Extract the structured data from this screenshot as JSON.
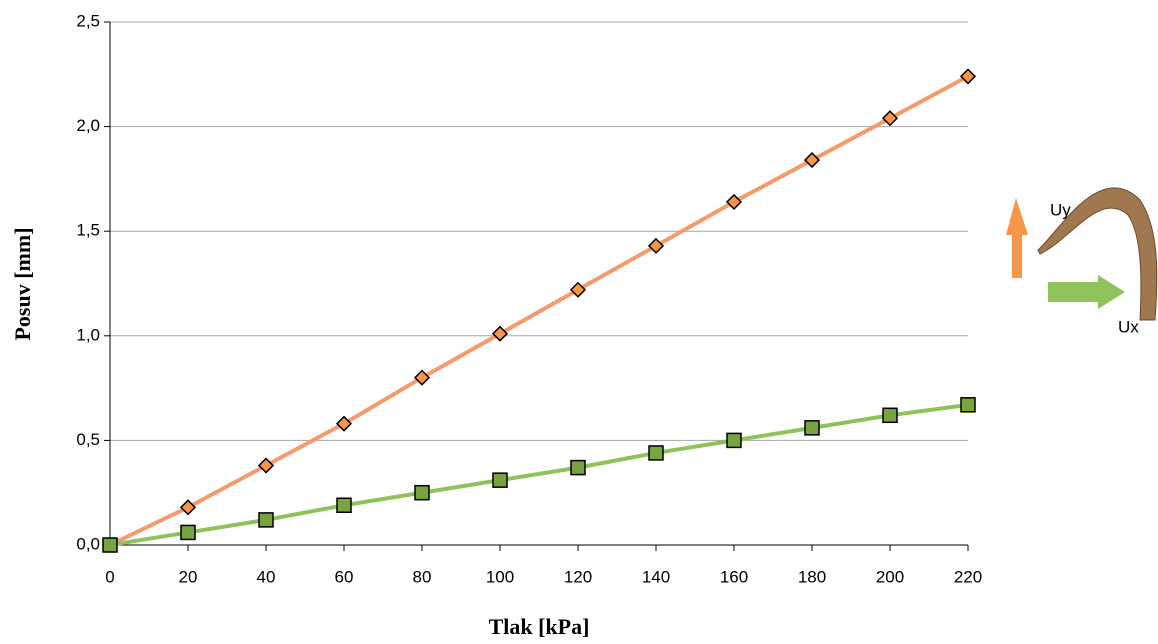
{
  "chart_data": {
    "type": "line",
    "x_label": "Tlak [kPa]",
    "y_label": "Posuv [mm]",
    "x": [
      0,
      20,
      40,
      60,
      80,
      100,
      120,
      140,
      160,
      180,
      200,
      220
    ],
    "series": [
      {
        "name": "Uy",
        "color": "#f59a6b",
        "marker_color": "#f79646",
        "marker": "diamond",
        "values": [
          0,
          0.18,
          0.38,
          0.58,
          0.8,
          1.01,
          1.22,
          1.43,
          1.64,
          1.84,
          2.04,
          2.24
        ]
      },
      {
        "name": "Ux",
        "color": "#8dc35a",
        "marker_color": "#77a340",
        "marker": "square",
        "values": [
          0,
          0.06,
          0.12,
          0.19,
          0.25,
          0.31,
          0.37,
          0.44,
          0.5,
          0.56,
          0.62,
          0.67
        ]
      }
    ],
    "xlim": [
      0,
      220
    ],
    "xticks": [
      0,
      20,
      40,
      60,
      80,
      100,
      120,
      140,
      160,
      180,
      200,
      220
    ],
    "ylim": [
      0,
      2.5
    ],
    "yticks": [
      {
        "value": 0,
        "label": "0,0"
      },
      {
        "value": 0.5,
        "label": "0,5"
      },
      {
        "value": 1,
        "label": "1,0"
      },
      {
        "value": 1.5,
        "label": "1,5"
      },
      {
        "value": 2,
        "label": "2,0"
      },
      {
        "value": 2.5,
        "label": "2,5"
      }
    ],
    "grid": true
  }
}
